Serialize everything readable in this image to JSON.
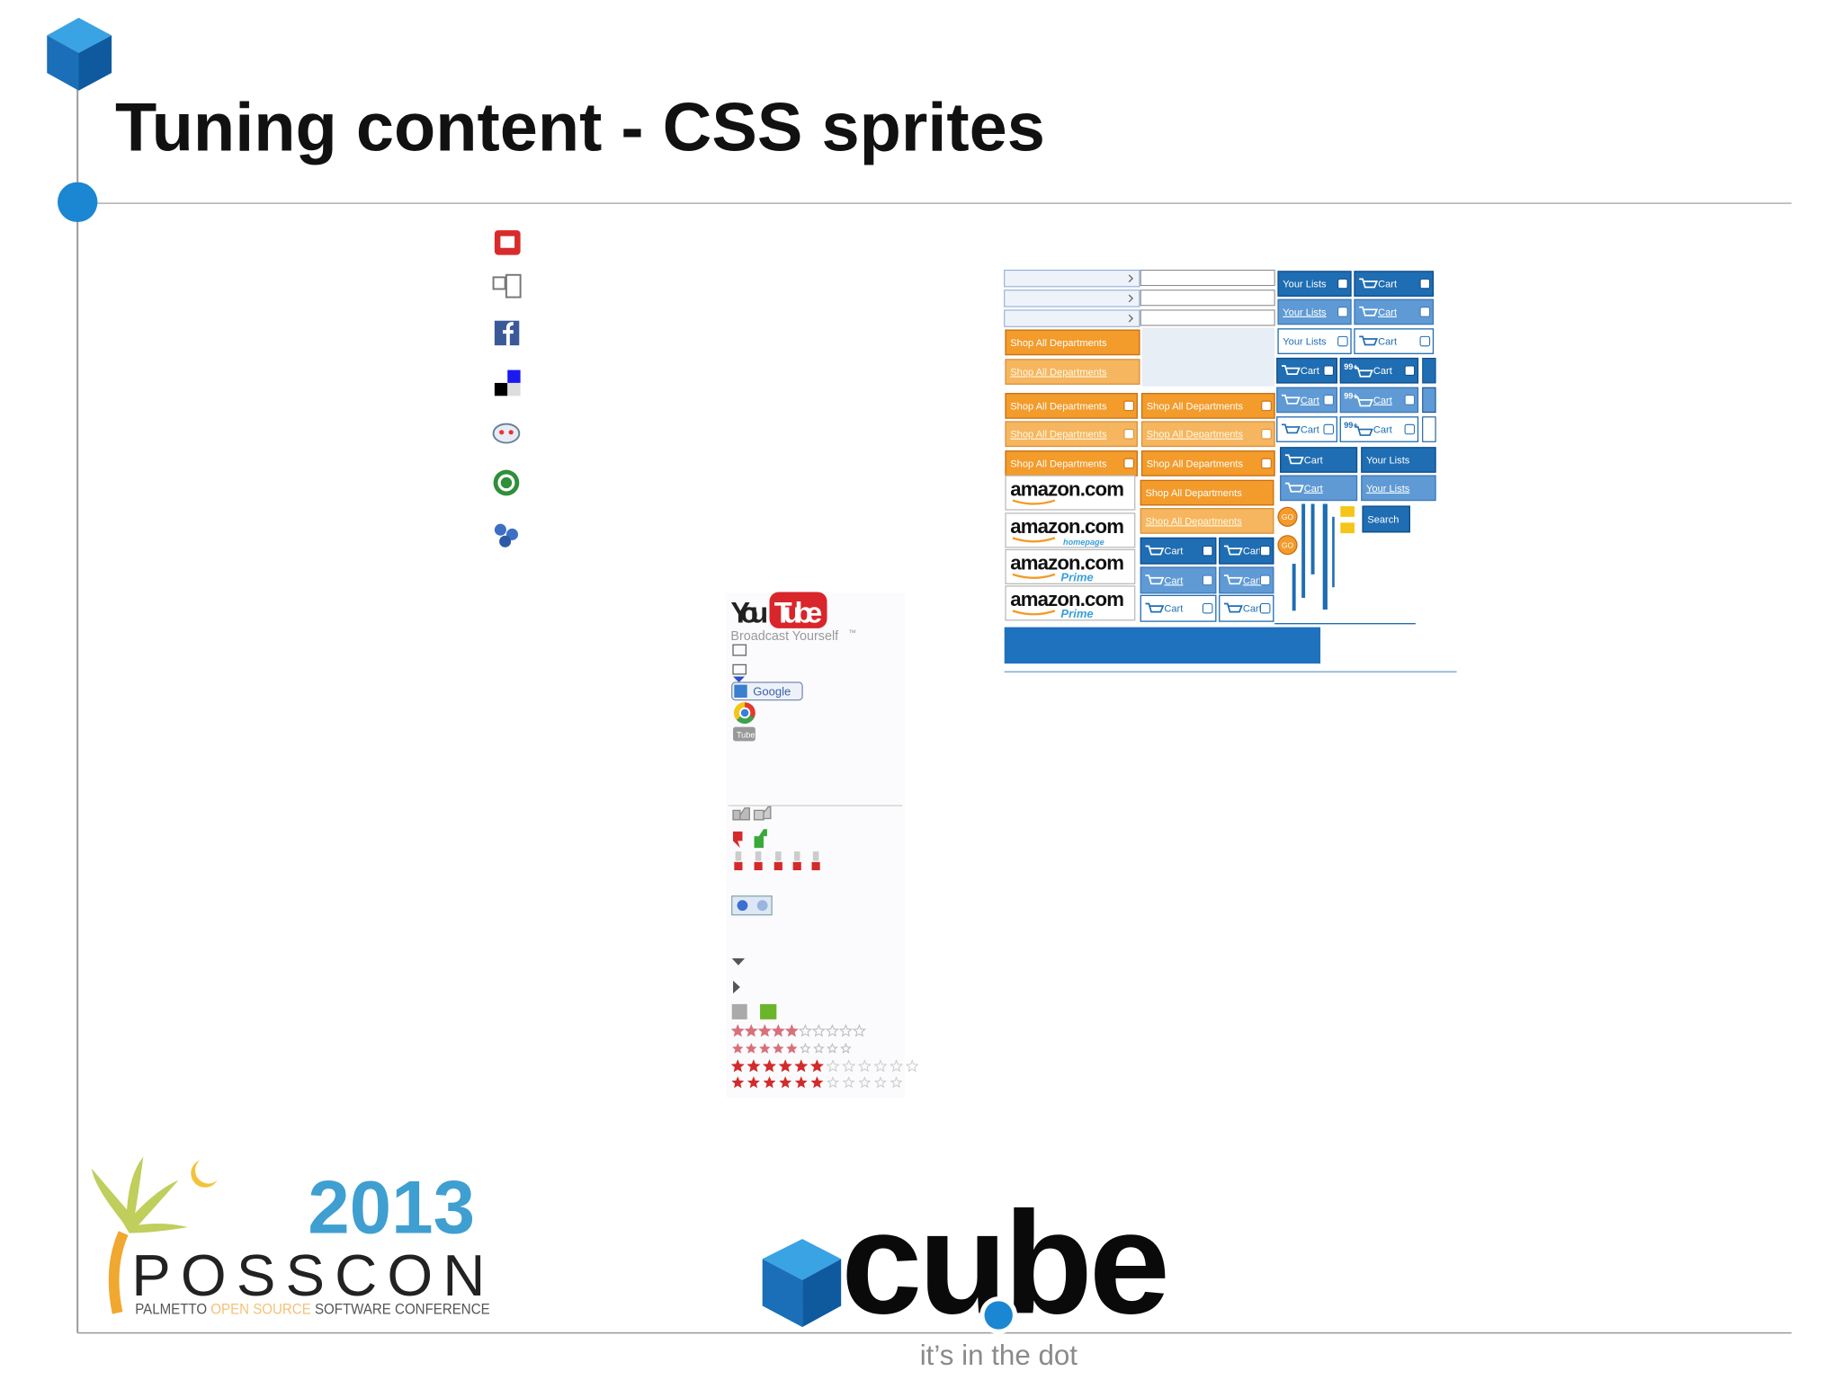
{
  "slide": {
    "title": "Tuning content - CSS sprites"
  },
  "youtube_sprite": {
    "logo_you": "You",
    "logo_tube": "Tube",
    "tagline": "Broadcast Yourself",
    "trademark": "™",
    "google": "Google",
    "tube_icon": "Tube"
  },
  "amazon_sprite": {
    "shop_all": "Shop All Departments",
    "your_lists": "Your Lists",
    "cart": "Cart",
    "badge": "99+",
    "amazon": "amazon.com",
    "homepage": "homepage",
    "prime": "Prime",
    "go": "GO",
    "search": "Search"
  },
  "footer": {
    "year": "2013",
    "conference": "POSSCON",
    "tagline_1": "PALMETTO ",
    "tagline_2": "OPEN SOURCE",
    "tagline_3": " SOFTWARE CONFERENCE",
    "brand": "cube",
    "brand_tagline": "it’s in the dot"
  }
}
